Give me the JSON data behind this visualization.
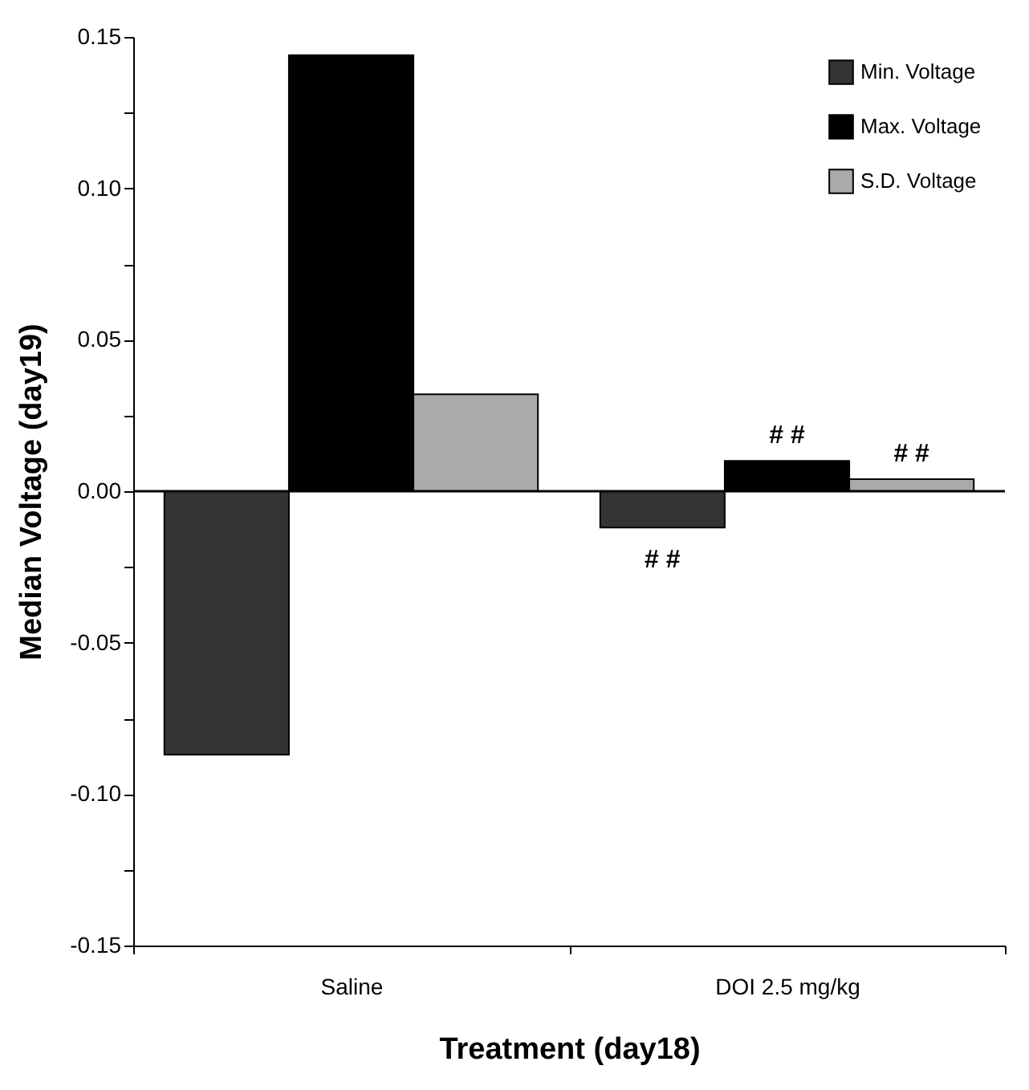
{
  "chart_data": {
    "type": "bar",
    "xlabel": "Treatment   (day18)",
    "ylabel": "Median  Voltage  (day19)",
    "categories": [
      "Saline",
      "DOI 2.5 mg/kg"
    ],
    "series": [
      {
        "name": "Min. Voltage",
        "color": "#333333",
        "values": [
          -0.087,
          -0.012
        ]
      },
      {
        "name": "Max. Voltage",
        "color": "#000000",
        "values": [
          0.144,
          0.01
        ]
      },
      {
        "name": "S.D. Voltage",
        "color": "#aaaaaa",
        "values": [
          0.032,
          0.004
        ]
      }
    ],
    "ylim": [
      -0.15,
      0.15
    ],
    "yticks": [
      -0.15,
      {
        "value": -0.125,
        "label": null
      },
      {
        "value": -0.1,
        "label": "-0.10"
      },
      {
        "value": -0.075,
        "label": null
      },
      -0.05,
      {
        "value": -0.025,
        "label": null
      },
      {
        "value": 0,
        "label": "0.00"
      },
      {
        "value": 0.025,
        "label": null
      },
      0.05,
      {
        "value": 0.075,
        "label": null
      },
      {
        "value": 0.1,
        "label": "0.10"
      },
      {
        "value": 0.125,
        "label": null
      },
      0.15
    ],
    "ref_lines": [
      {
        "axis": "y",
        "value": 0,
        "color": "#000000"
      }
    ],
    "annotations": [
      "# #",
      "# #",
      "# #"
    ],
    "legend": "top right",
    "grid": false
  }
}
